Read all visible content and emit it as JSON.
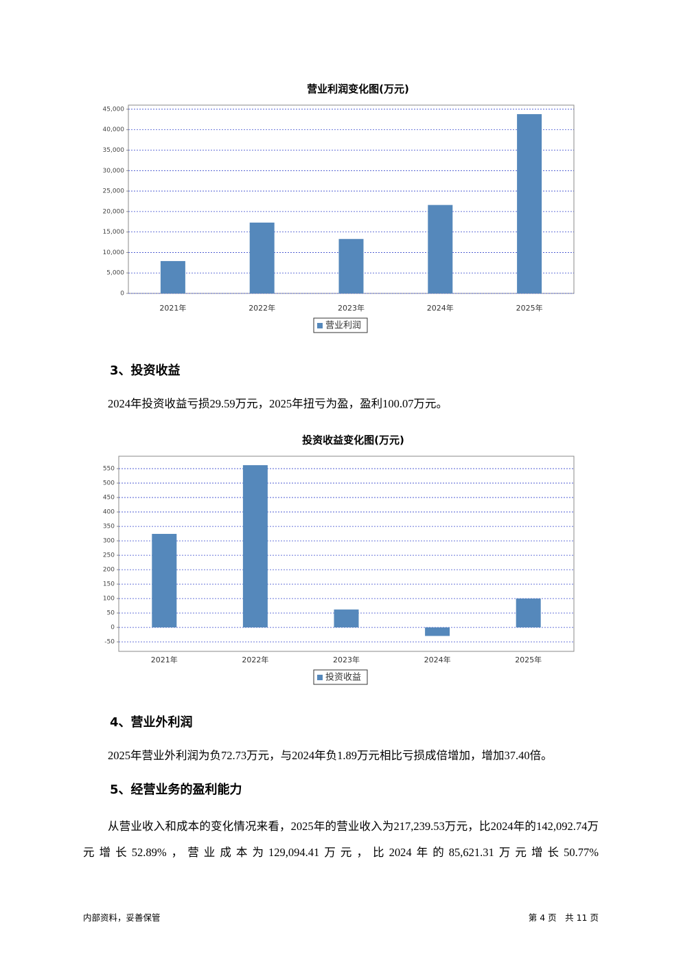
{
  "chart_data": [
    {
      "type": "bar",
      "title": "营业利润变化图(万元)",
      "categories": [
        "2021年",
        "2022年",
        "2023年",
        "2024年",
        "2025年"
      ],
      "series": [
        {
          "name": "营业利润",
          "color": "#5588bb",
          "values": [
            7900,
            17300,
            13300,
            21600,
            43800
          ]
        }
      ],
      "ylim": [
        0,
        46000
      ],
      "yticks": [
        0,
        {
          "value": 5000,
          "label": "5,000"
        },
        {
          "value": 10000,
          "label": "10,000"
        },
        {
          "value": 15000,
          "label": "15,000"
        },
        {
          "value": 20000,
          "label": "20,000"
        },
        {
          "value": 25000,
          "label": "25,000"
        },
        {
          "value": 30000,
          "label": "30,000"
        },
        {
          "value": 35000,
          "label": "35,000"
        },
        {
          "value": 40000,
          "label": "40,000"
        },
        {
          "value": 45000,
          "label": "45,000"
        }
      ],
      "grid": true
    },
    {
      "type": "bar",
      "title": "投资收益变化图(万元)",
      "categories": [
        "2021年",
        "2022年",
        "2023年",
        "2024年",
        "2025年"
      ],
      "series": [
        {
          "name": "投资收益",
          "color": "#5588bb",
          "values": [
            324,
            562,
            62,
            -29.59,
            100.07
          ]
        }
      ],
      "ylim": [
        -83,
        593
      ],
      "yticks": [
        -50,
        0,
        50,
        100,
        150,
        200,
        250,
        300,
        350,
        400,
        450,
        500,
        550
      ],
      "grid": true
    }
  ],
  "sections": [
    {
      "heading": "3、投资收益",
      "paragraph": "2024年投资收益亏损29.59万元，2025年扭亏为盈，盈利100.07万元。"
    },
    {
      "heading": "4、营业外利润",
      "paragraph": "2025年营业外利润为负72.73万元，与2024年负1.89万元相比亏损成倍增加，增加37.40倍。"
    },
    {
      "heading": "5、经营业务的盈利能力",
      "paragraph": "从营业收入和成本的变化情况来看，2025年的营业收入为217,239.53万元，比2024年的142,092.74万元增长52.89%，营业成本为129,094.41万元，比2024年的85,621.31万元增长50.77%"
    }
  ],
  "footer": {
    "left": "内部资料，妥善保管",
    "right": "第 4 页　共 11 页"
  }
}
